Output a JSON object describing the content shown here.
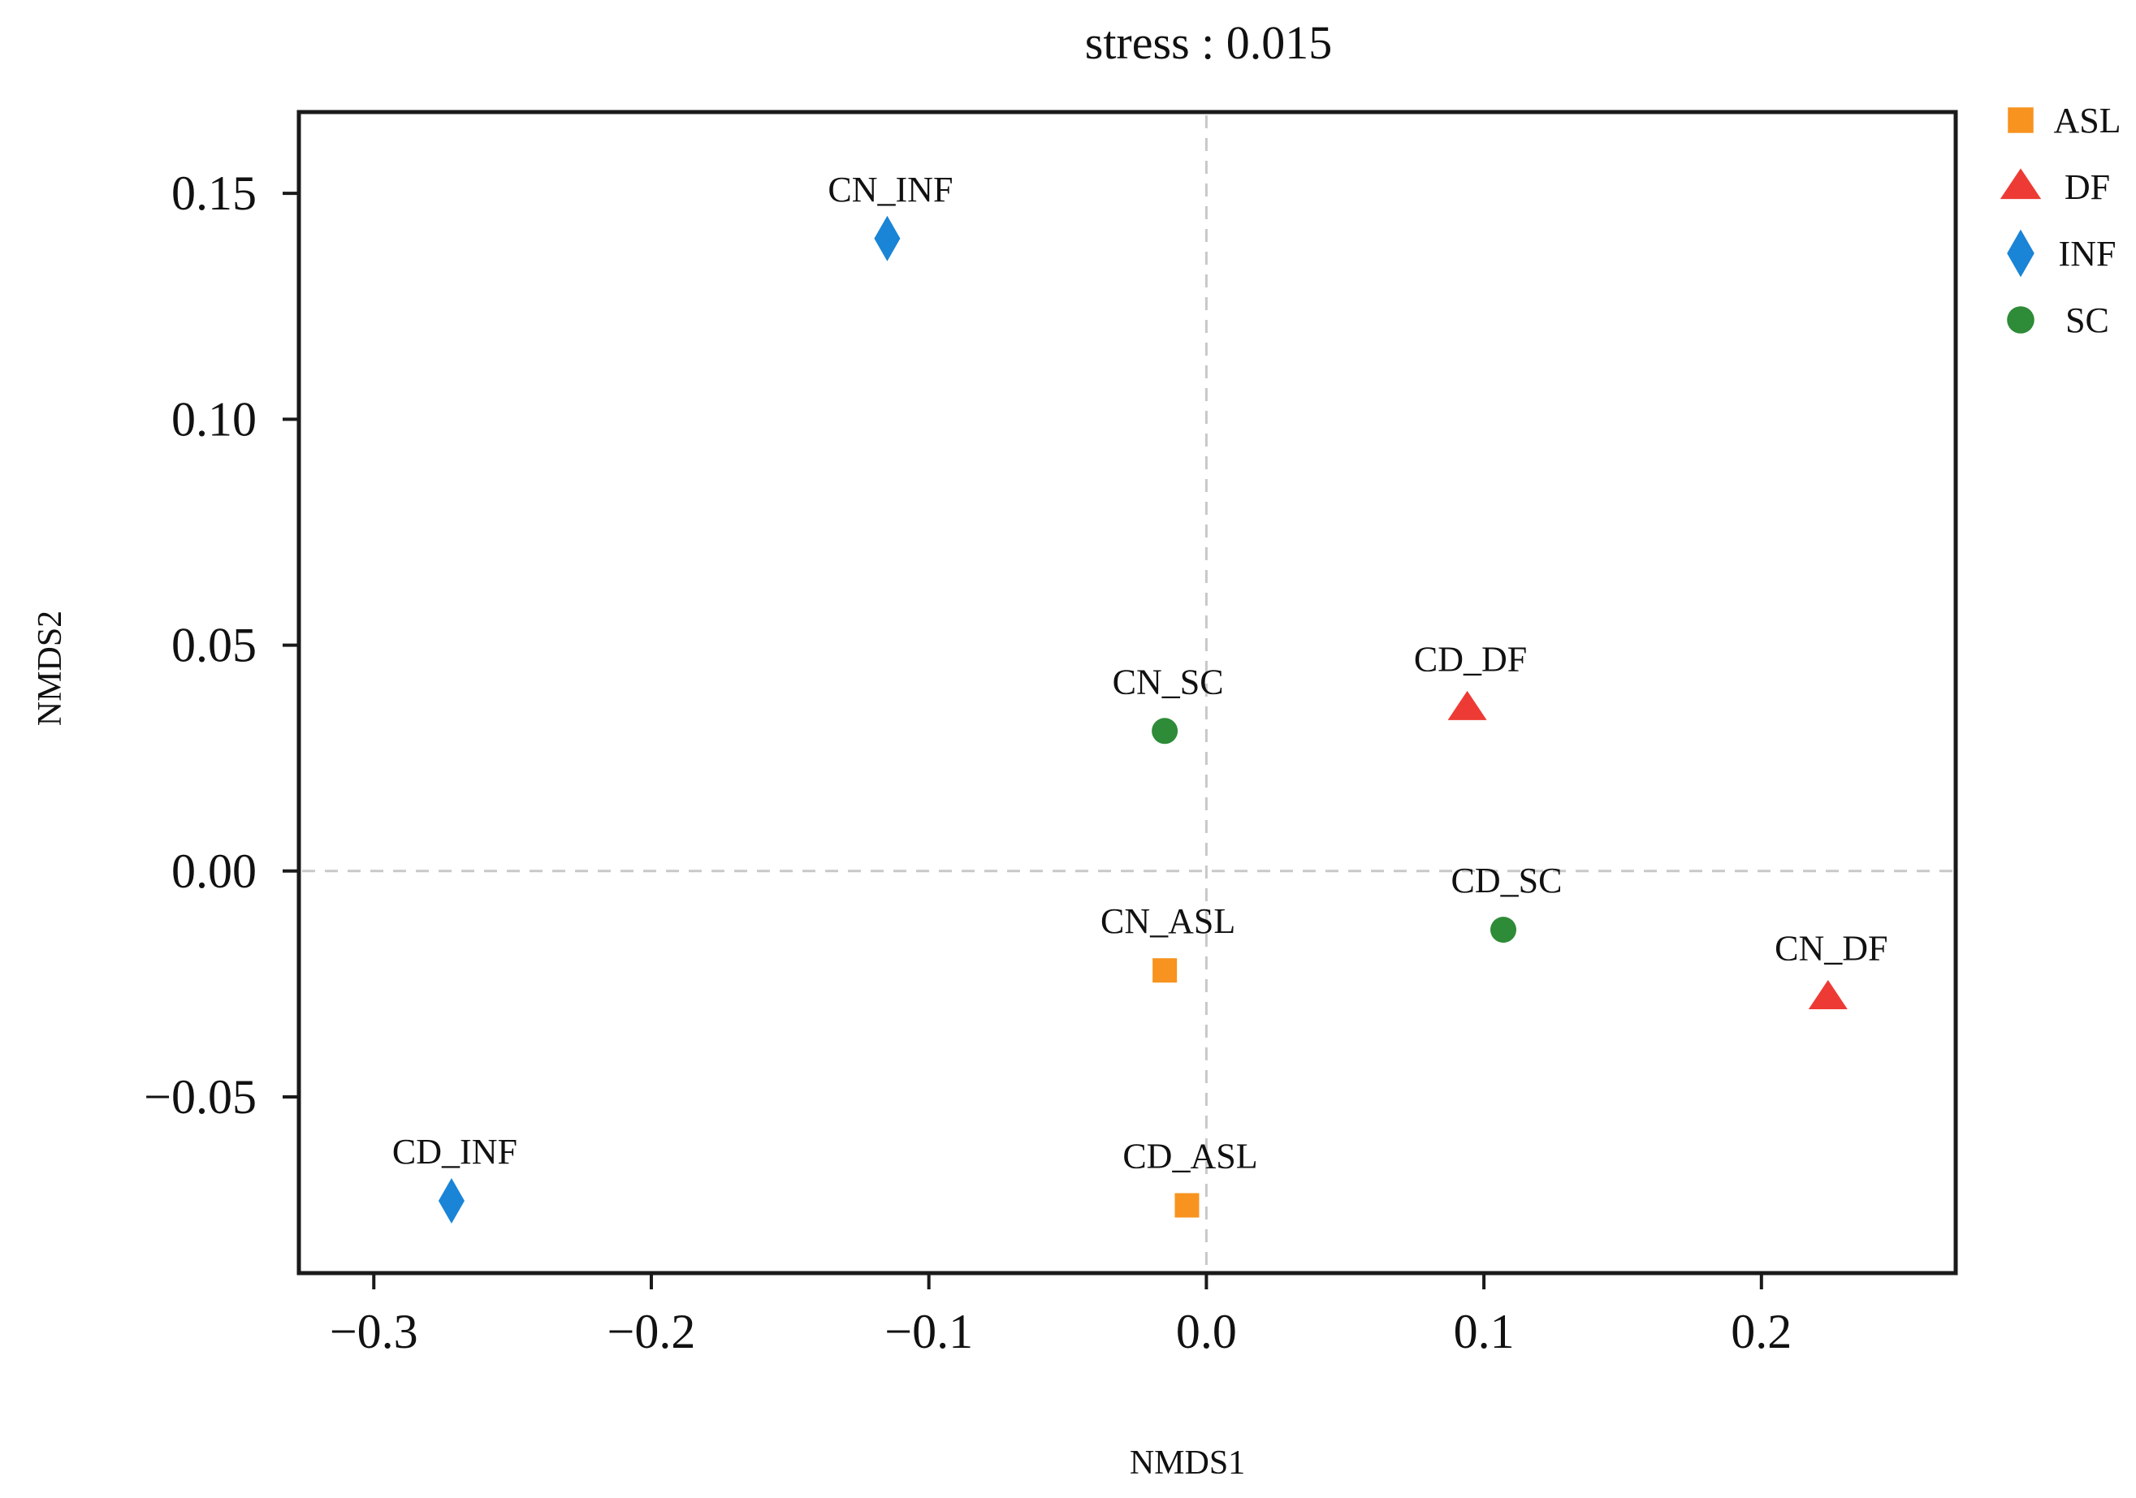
{
  "chart_data": {
    "type": "scatter",
    "title": "stress : 0.015",
    "xlabel": "NMDS1",
    "ylabel": "NMDS2",
    "xlim": [
      -0.327,
      0.27
    ],
    "ylim": [
      -0.089,
      0.168
    ],
    "xticks": [
      -0.3,
      -0.2,
      -0.1,
      0.0,
      0.1,
      0.2
    ],
    "xtick_labels": [
      "−0.3",
      "−0.2",
      "−0.1",
      "0.0",
      "0.1",
      "0.2"
    ],
    "yticks": [
      0.15,
      0.1,
      0.05,
      0.0,
      -0.05
    ],
    "ytick_labels": [
      "0.15",
      "0.10",
      "0.05",
      "0.00",
      "−0.05"
    ],
    "grid": false,
    "reference_lines": {
      "x": 0,
      "y": 0,
      "style": "dashed"
    },
    "legend_position": "outside-right-top",
    "series": [
      {
        "name": "ASL",
        "marker": "square",
        "color": "#f7931e",
        "points": [
          {
            "label": "CN_ASL",
            "x": -0.015,
            "y": -0.022
          },
          {
            "label": "CD_ASL",
            "x": -0.007,
            "y": -0.074
          }
        ]
      },
      {
        "name": "DF",
        "marker": "triangle",
        "color": "#ee3a34",
        "points": [
          {
            "label": "CD_DF",
            "x": 0.094,
            "y": 0.036
          },
          {
            "label": "CN_DF",
            "x": 0.224,
            "y": -0.028
          }
        ]
      },
      {
        "name": "INF",
        "marker": "diamond",
        "color": "#1a84d6",
        "points": [
          {
            "label": "CN_INF",
            "x": -0.115,
            "y": 0.14
          },
          {
            "label": "CD_INF",
            "x": -0.272,
            "y": -0.073
          }
        ]
      },
      {
        "name": "SC",
        "marker": "circle",
        "color": "#2e8b37",
        "points": [
          {
            "label": "CN_SC",
            "x": -0.015,
            "y": 0.031
          },
          {
            "label": "CD_SC",
            "x": 0.107,
            "y": -0.013
          }
        ]
      }
    ]
  }
}
